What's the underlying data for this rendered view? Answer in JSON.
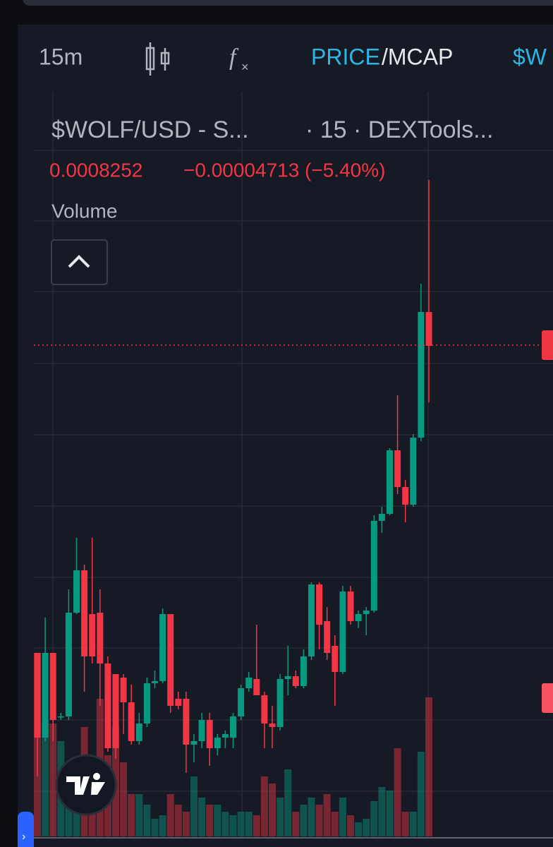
{
  "toolbar": {
    "interval": "15m",
    "price": "PRICE",
    "mcap": "/MCAP",
    "symbol": "$W"
  },
  "legend": {
    "pair": "$WOLF/USD - S...",
    "source": "· 15 · DEXTools...",
    "price": "0.0008252",
    "change": "−0.00004713 (−5.40%)",
    "volume": "Volume"
  },
  "chart_data": {
    "type": "candlestick",
    "up_color": "#089981",
    "down_color": "#f23645",
    "ylim": [
      0,
      100
    ],
    "open": [
      26.5,
      14.5,
      26.5,
      17.5,
      17.5,
      32.2,
      38.2,
      32,
      32.2,
      25,
      23.5,
      23,
      19.5,
      14,
      16.5,
      22.2,
      22.5,
      32,
      20,
      20,
      13.5,
      14,
      17,
      13,
      14.5,
      14.5,
      17.5,
      21.5,
      22.8,
      20.5,
      16.5,
      16,
      22.8,
      23.2,
      21.8,
      26,
      36.2,
      31,
      27.5,
      23.8,
      35.2,
      31,
      32,
      32.5,
      45.2,
      46.2,
      55.2,
      50,
      47.5,
      57,
      74.8
    ],
    "high": [
      26.5,
      31.5,
      26.5,
      18,
      35.5,
      42.8,
      39,
      42.8,
      35.5,
      26,
      23.5,
      23.5,
      22,
      18,
      23,
      24,
      32.8,
      32,
      21,
      21,
      15,
      18,
      18,
      15,
      15.5,
      18,
      22,
      23.8,
      30.5,
      21,
      19,
      23.5,
      27.5,
      24,
      27,
      36.5,
      36.5,
      33,
      29,
      36,
      36,
      32.5,
      33,
      46,
      47.2,
      55.5,
      63,
      51,
      57.5,
      78.8,
      93.5
    ],
    "low": [
      9,
      14,
      14,
      17,
      17,
      32,
      21,
      25,
      19,
      12.5,
      11.5,
      15,
      13.5,
      13.5,
      16,
      21.5,
      22.2,
      18,
      18.5,
      9.5,
      11,
      13,
      10.5,
      12,
      13,
      13,
      17,
      21,
      20.5,
      13,
      13,
      15.5,
      20.5,
      21.5,
      21.5,
      25.5,
      27,
      25.5,
      19,
      23.5,
      30.5,
      30,
      29,
      32.2,
      43.5,
      46,
      49,
      45,
      47.2,
      56.5,
      62
    ],
    "close": [
      14.5,
      26.5,
      17,
      17.5,
      32.2,
      38.2,
      26,
      26,
      25,
      13,
      13,
      19.5,
      14,
      16.5,
      22.2,
      22.5,
      32,
      19,
      19,
      13.5,
      14,
      17,
      13,
      14.5,
      15,
      17.5,
      21.5,
      23,
      20.5,
      16.5,
      16,
      22.8,
      23.2,
      21.8,
      26,
      36.2,
      30.5,
      26.5,
      23.8,
      35.2,
      31,
      32,
      32.5,
      45.2,
      46.2,
      55.2,
      50,
      47.5,
      57,
      74.8,
      70
    ],
    "volume": [
      26.5,
      16.5,
      16.5,
      14,
      9,
      6,
      16,
      5,
      20,
      12,
      16,
      11,
      6.5,
      6.5,
      5,
      3,
      3.5,
      6.5,
      5,
      4,
      9,
      6,
      5,
      5,
      4,
      3.5,
      4,
      4,
      3.5,
      9,
      8,
      6,
      10,
      4,
      5,
      6,
      5,
      6.5,
      4,
      6,
      3.5,
      2.5,
      3,
      5.5,
      7.5,
      7,
      13,
      4,
      4,
      12.5,
      20.2
    ]
  }
}
